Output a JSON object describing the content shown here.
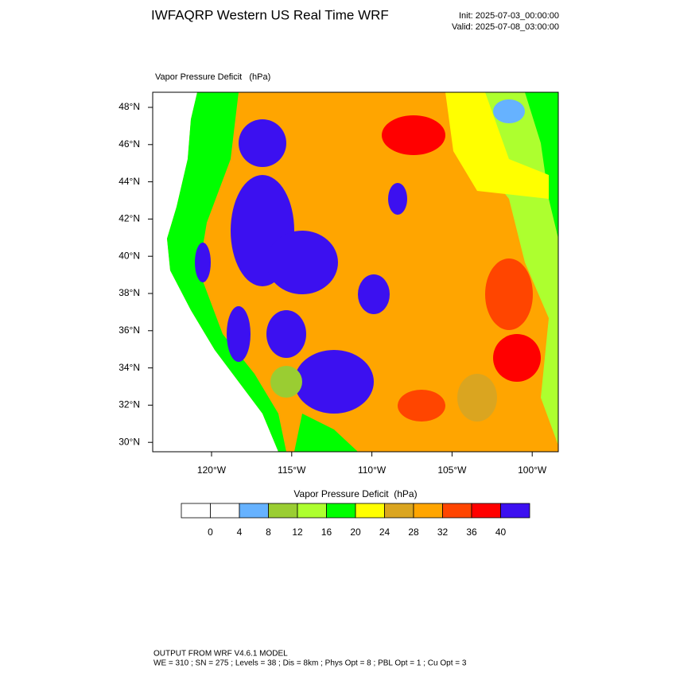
{
  "header": {
    "title": "IWFAQRP Western US Real Time WRF",
    "init": "Init: 2025-07-03_00:00:00",
    "valid": "Valid: 2025-07-08_03:00:00"
  },
  "map": {
    "title": "Vapor Pressure Deficit   (hPa)",
    "lat_labels": [
      "48°N",
      "46°N",
      "44°N",
      "42°N",
      "40°N",
      "38°N",
      "36°N",
      "34°N",
      "32°N",
      "30°N"
    ],
    "lon_labels": [
      "120°W",
      "115°W",
      "110°W",
      "105°W",
      "100°W"
    ]
  },
  "colorbar": {
    "title": "Vapor Pressure Deficit  (hPa)",
    "ticks": [
      0,
      4,
      8,
      12,
      16,
      20,
      24,
      28,
      32,
      36,
      40
    ],
    "colors": [
      "#ffffff",
      "#ffffff",
      "#66b2ff",
      "#9acd32",
      "#adff2f",
      "#00ff00",
      "#ffff00",
      "#daa520",
      "#ffa500",
      "#ff4500",
      "#ff0000",
      "#3c10f0"
    ]
  },
  "footer": {
    "line1": "OUTPUT FROM WRF V4.6.1 MODEL",
    "line2": "WE = 310 ; SN = 275 ; Levels = 38 ; Dis = 8km ; Phys Opt = 8 ; PBL Opt = 1 ; Cu Opt = 3"
  }
}
